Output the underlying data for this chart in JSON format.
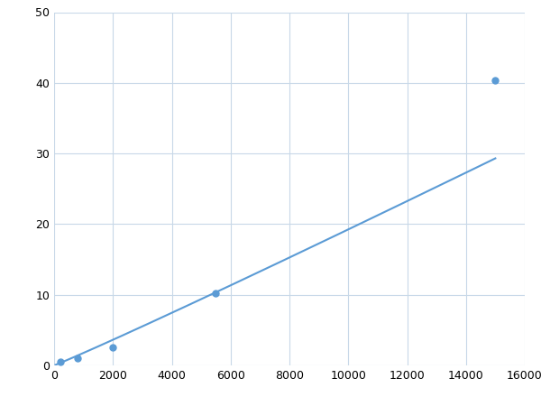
{
  "x": [
    200,
    800,
    2000,
    5500,
    15000
  ],
  "y": [
    0.5,
    1.0,
    2.5,
    10.2,
    40.3
  ],
  "line_color": "#5b9bd5",
  "marker_color": "#5b9bd5",
  "marker_size": 5,
  "line_width": 1.5,
  "xlim": [
    0,
    16000
  ],
  "ylim": [
    0,
    50
  ],
  "xticks": [
    0,
    2000,
    4000,
    6000,
    8000,
    10000,
    12000,
    14000,
    16000
  ],
  "yticks": [
    0,
    10,
    20,
    30,
    40,
    50
  ],
  "grid_color": "#c8d8e8",
  "background_color": "#ffffff",
  "figsize": [
    6.0,
    4.5
  ],
  "dpi": 100
}
